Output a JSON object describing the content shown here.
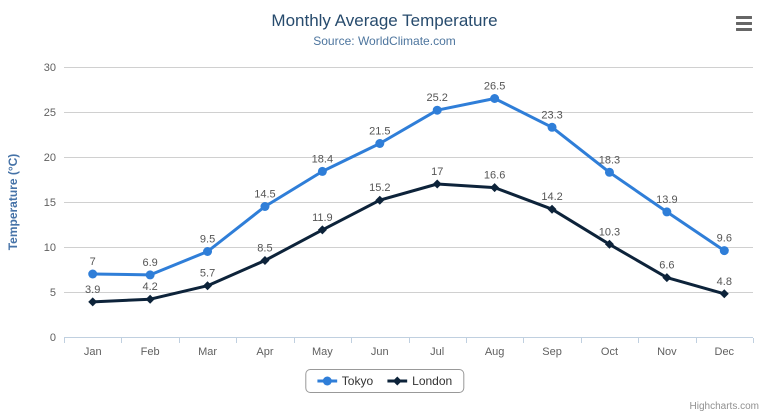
{
  "chart_data": {
    "type": "line",
    "title": "Monthly Average Temperature",
    "subtitle": "Source: WorldClimate.com",
    "categories": [
      "Jan",
      "Feb",
      "Mar",
      "Apr",
      "May",
      "Jun",
      "Jul",
      "Aug",
      "Sep",
      "Oct",
      "Nov",
      "Dec"
    ],
    "series": [
      {
        "name": "Tokyo",
        "color": "#2f7ed8",
        "marker": "circle",
        "values": [
          7,
          6.9,
          9.5,
          14.5,
          18.4,
          21.5,
          25.2,
          26.5,
          23.3,
          18.3,
          13.9,
          9.6
        ]
      },
      {
        "name": "London",
        "color": "#0d233a",
        "marker": "diamond",
        "values": [
          3.9,
          4.2,
          5.7,
          8.5,
          11.9,
          15.2,
          17,
          16.6,
          14.2,
          10.3,
          6.6,
          4.8
        ]
      }
    ],
    "xlabel": "",
    "ylabel": "Temperature (°C)",
    "ylim": [
      0,
      30
    ],
    "ytick_interval": 5,
    "yticks": [
      0,
      5,
      10,
      15,
      20,
      25,
      30
    ],
    "grid": true,
    "legend_position": "bottom",
    "data_labels": true,
    "colors": {
      "title": "#274b6d",
      "subtitle": "#4d759e",
      "axis_labels": "#606060",
      "y_axis_title": "#4572a7",
      "gridline": "#d0d0d0",
      "axis_line": "#c0d0e0",
      "data_label": "#555555",
      "legend_text": "#333333",
      "legend_border": "#999999"
    }
  },
  "credits": {
    "label": "Highcharts.com"
  }
}
